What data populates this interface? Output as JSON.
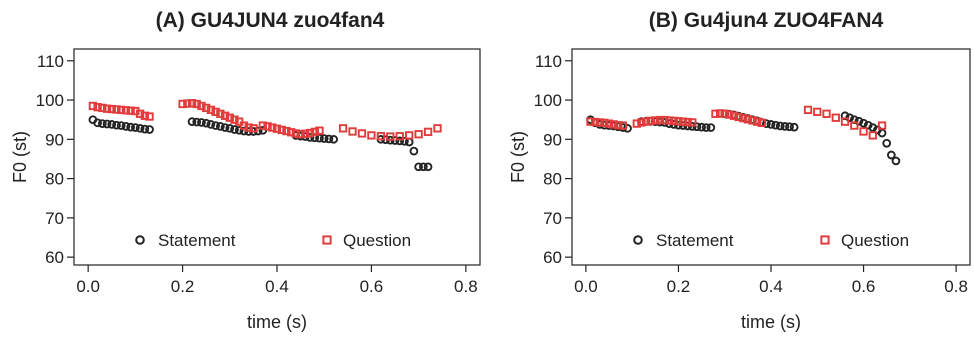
{
  "chart_data": [
    {
      "type": "scatter",
      "title": "(A) GU4JUN4 zuo4fan4",
      "xlabel": "time (s)",
      "ylabel": "F0 (st)",
      "xlim": [
        -0.03,
        0.83
      ],
      "ylim": [
        58,
        113
      ],
      "xticks": [
        "0.0",
        "0.2",
        "0.4",
        "0.6",
        "0.8"
      ],
      "xtick_values": [
        0,
        0.2,
        0.4,
        0.6,
        0.8
      ],
      "yticks": [
        "60",
        "70",
        "80",
        "90",
        "100",
        "110"
      ],
      "ytick_values": [
        60,
        70,
        80,
        90,
        100,
        110
      ],
      "legend": {
        "position": "bottom",
        "entries": [
          "Statement",
          "Question"
        ]
      },
      "series": [
        {
          "name": "Statement",
          "marker": "circle",
          "color": "#222222",
          "x": [
            0.01,
            0.02,
            0.03,
            0.04,
            0.05,
            0.06,
            0.07,
            0.08,
            0.09,
            0.1,
            0.11,
            0.12,
            0.13,
            0.22,
            0.23,
            0.24,
            0.25,
            0.26,
            0.27,
            0.28,
            0.29,
            0.3,
            0.31,
            0.32,
            0.33,
            0.34,
            0.35,
            0.36,
            0.37,
            0.44,
            0.45,
            0.46,
            0.47,
            0.48,
            0.49,
            0.5,
            0.51,
            0.52,
            0.62,
            0.63,
            0.64,
            0.65,
            0.66,
            0.67,
            0.68,
            0.69,
            0.7,
            0.71,
            0.72
          ],
          "y": [
            95.0,
            94.2,
            94.0,
            93.9,
            93.8,
            93.6,
            93.5,
            93.3,
            93.1,
            93.0,
            92.8,
            92.6,
            92.5,
            94.5,
            94.4,
            94.3,
            94.1,
            93.8,
            93.5,
            93.3,
            93.0,
            92.8,
            92.5,
            92.3,
            92.1,
            92.0,
            92.0,
            92.1,
            92.3,
            91.0,
            90.8,
            90.7,
            90.5,
            90.4,
            90.3,
            90.2,
            90.1,
            90.0,
            90.0,
            89.9,
            89.8,
            89.7,
            89.6,
            89.5,
            89.3,
            87.0,
            83.0,
            83.0,
            83.0
          ]
        },
        {
          "name": "Question",
          "marker": "square",
          "color": "#e03c3c",
          "x": [
            0.01,
            0.02,
            0.03,
            0.04,
            0.05,
            0.06,
            0.07,
            0.08,
            0.09,
            0.1,
            0.11,
            0.12,
            0.13,
            0.2,
            0.21,
            0.22,
            0.23,
            0.24,
            0.25,
            0.26,
            0.27,
            0.28,
            0.29,
            0.3,
            0.31,
            0.32,
            0.33,
            0.34,
            0.35,
            0.37,
            0.38,
            0.39,
            0.4,
            0.41,
            0.42,
            0.43,
            0.44,
            0.45,
            0.46,
            0.47,
            0.48,
            0.49,
            0.54,
            0.56,
            0.58,
            0.6,
            0.62,
            0.64,
            0.66,
            0.68,
            0.7,
            0.72,
            0.74
          ],
          "y": [
            98.5,
            98.2,
            98.0,
            97.8,
            97.7,
            97.6,
            97.5,
            97.4,
            97.3,
            97.2,
            96.5,
            96.0,
            95.8,
            99.0,
            99.1,
            99.2,
            99.0,
            98.5,
            98.0,
            97.5,
            97.0,
            96.5,
            96.0,
            95.5,
            95.0,
            94.5,
            93.5,
            93.0,
            92.8,
            93.5,
            93.3,
            93.0,
            92.7,
            92.4,
            92.1,
            91.8,
            91.5,
            91.3,
            91.4,
            91.6,
            91.9,
            92.2,
            92.8,
            92.0,
            91.5,
            91.0,
            90.8,
            90.7,
            90.8,
            91.0,
            91.3,
            91.9,
            92.8
          ]
        }
      ]
    },
    {
      "type": "scatter",
      "title": "(B) Gu4jun4 ZUO4FAN4",
      "xlabel": "time (s)",
      "ylabel": "F0 (st)",
      "xlim": [
        -0.03,
        0.83
      ],
      "ylim": [
        58,
        113
      ],
      "xticks": [
        "0.0",
        "0.2",
        "0.4",
        "0.6",
        "0.8"
      ],
      "xtick_values": [
        0,
        0.2,
        0.4,
        0.6,
        0.8
      ],
      "yticks": [
        "60",
        "70",
        "80",
        "90",
        "100",
        "110"
      ],
      "ytick_values": [
        60,
        70,
        80,
        90,
        100,
        110
      ],
      "legend": {
        "position": "bottom",
        "entries": [
          "Statement",
          "Question"
        ]
      },
      "series": [
        {
          "name": "Statement",
          "marker": "circle",
          "color": "#222222",
          "x": [
            0.01,
            0.02,
            0.03,
            0.04,
            0.05,
            0.06,
            0.07,
            0.08,
            0.09,
            0.12,
            0.13,
            0.14,
            0.15,
            0.16,
            0.17,
            0.18,
            0.19,
            0.2,
            0.21,
            0.22,
            0.23,
            0.24,
            0.25,
            0.26,
            0.27,
            0.3,
            0.31,
            0.32,
            0.33,
            0.34,
            0.35,
            0.36,
            0.37,
            0.38,
            0.39,
            0.4,
            0.41,
            0.42,
            0.43,
            0.44,
            0.45,
            0.56,
            0.57,
            0.58,
            0.59,
            0.6,
            0.61,
            0.62,
            0.63,
            0.64,
            0.65,
            0.66,
            0.67
          ],
          "y": [
            95.0,
            94.2,
            93.8,
            93.6,
            93.5,
            93.4,
            93.2,
            93.0,
            92.8,
            94.5,
            94.6,
            94.6,
            94.5,
            94.4,
            94.3,
            94.0,
            93.8,
            93.6,
            93.5,
            93.4,
            93.3,
            93.2,
            93.1,
            93.0,
            93.0,
            96.5,
            96.4,
            96.2,
            95.9,
            95.6,
            95.3,
            95.0,
            94.7,
            94.3,
            94.0,
            93.8,
            93.6,
            93.4,
            93.3,
            93.2,
            93.1,
            96.0,
            95.5,
            95.0,
            94.6,
            94.1,
            93.6,
            93.0,
            92.4,
            91.6,
            89.0,
            86.0,
            84.5
          ]
        },
        {
          "name": "Question",
          "marker": "square",
          "color": "#e03c3c",
          "x": [
            0.01,
            0.02,
            0.03,
            0.04,
            0.05,
            0.06,
            0.07,
            0.08,
            0.11,
            0.12,
            0.13,
            0.14,
            0.15,
            0.16,
            0.17,
            0.18,
            0.19,
            0.2,
            0.21,
            0.22,
            0.23,
            0.28,
            0.29,
            0.3,
            0.31,
            0.32,
            0.33,
            0.34,
            0.35,
            0.36,
            0.37,
            0.38,
            0.48,
            0.5,
            0.52,
            0.54,
            0.56,
            0.58,
            0.6,
            0.62,
            0.64
          ],
          "y": [
            94.5,
            94.4,
            94.3,
            94.2,
            94.0,
            93.8,
            93.6,
            93.5,
            94.0,
            94.3,
            94.5,
            94.7,
            94.8,
            94.9,
            94.9,
            94.8,
            94.7,
            94.6,
            94.5,
            94.4,
            94.3,
            96.5,
            96.6,
            96.5,
            96.3,
            96.0,
            95.7,
            95.4,
            95.1,
            94.8,
            94.5,
            94.2,
            97.5,
            97.0,
            96.5,
            95.5,
            94.5,
            93.5,
            92.0,
            91.0,
            93.5
          ]
        }
      ]
    }
  ]
}
